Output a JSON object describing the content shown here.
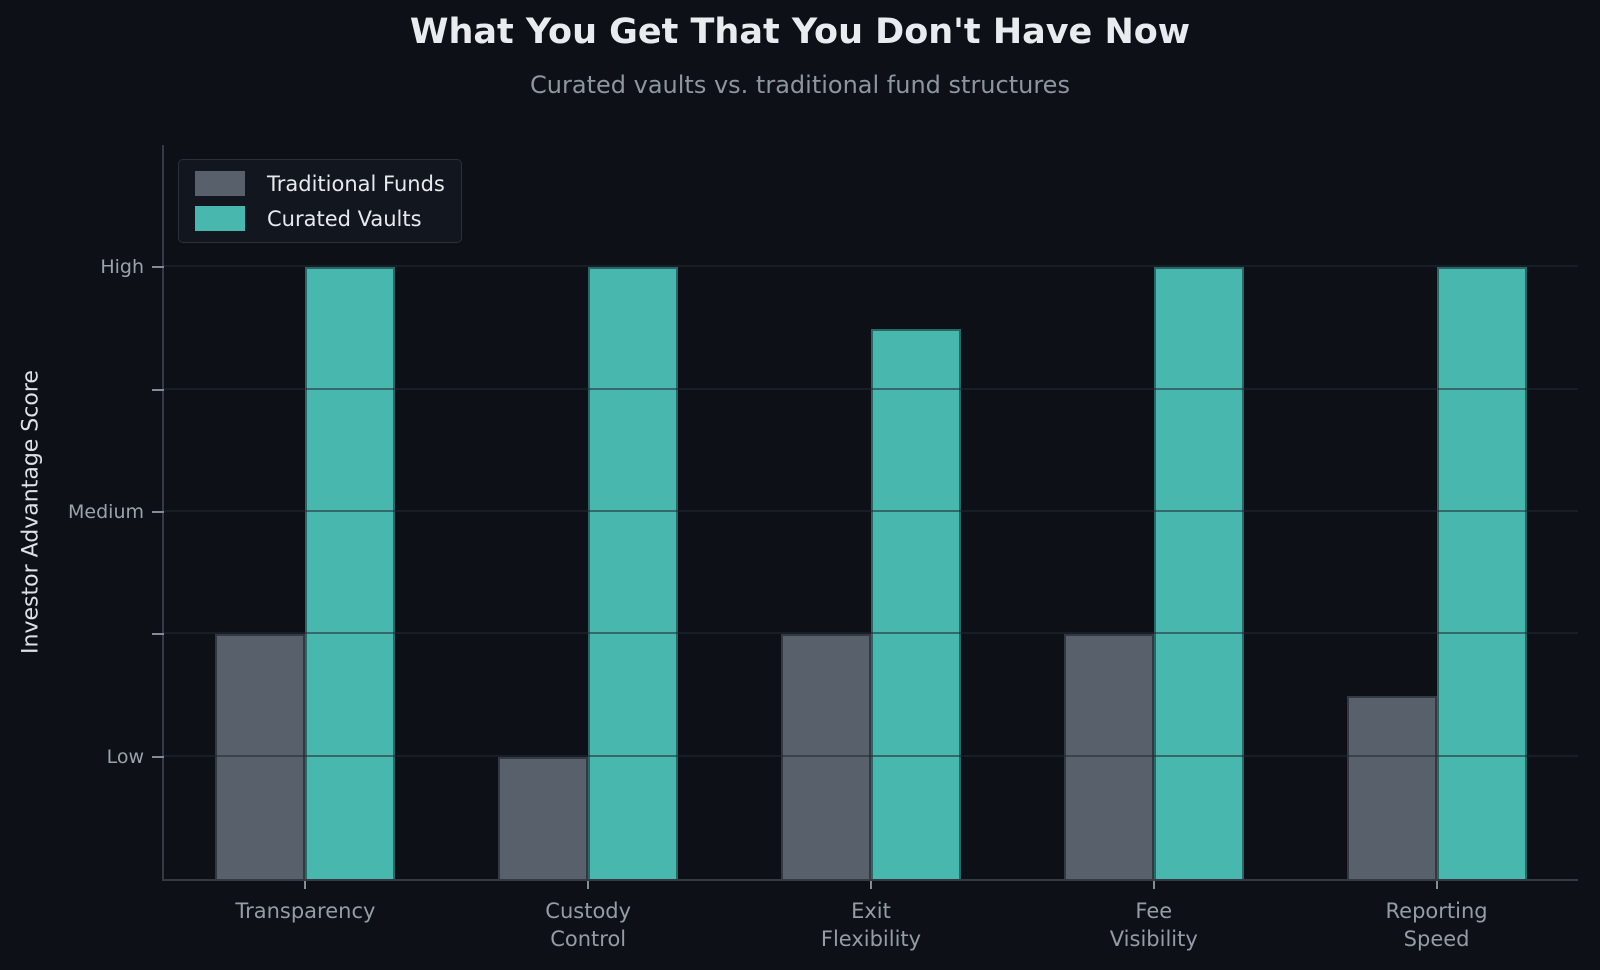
{
  "chart_data": {
    "type": "bar",
    "title": "What You Get That You Don't Have Now",
    "subtitle": "Curated vaults vs. traditional fund structures",
    "xlabel": "",
    "ylabel": "Investor Advantage Score",
    "categories": [
      "Transparency",
      "Custody\nControl",
      "Exit\nFlexibility",
      "Fee\nVisibility",
      "Reporting\nSpeed"
    ],
    "series": [
      {
        "name": "Traditional Funds",
        "color": "#58606c",
        "values": [
          1.5,
          1.0,
          1.5,
          1.5,
          1.25
        ]
      },
      {
        "name": "Curated Vaults",
        "color": "#48b7ae",
        "values": [
          3.0,
          3.0,
          2.75,
          3.0,
          3.0
        ]
      }
    ],
    "ylim": [
      0.5,
      3.5
    ],
    "yticks": [
      {
        "value": 1.0,
        "label": "Low"
      },
      {
        "value": 1.5,
        "label": ""
      },
      {
        "value": 2.0,
        "label": "Medium"
      },
      {
        "value": 2.5,
        "label": ""
      },
      {
        "value": 3.0,
        "label": "High"
      }
    ],
    "grid": true,
    "legend_position": "upper-left"
  },
  "colors": {
    "background": "#0d1117",
    "title_text": "#e9ecef",
    "subtitle_text": "#8d95a0",
    "axis_label_text": "#dde1e6",
    "tick_label_text": "#9aa2ad",
    "tick_label_text2": "#959ca7",
    "tick_mark": "#848c99",
    "spine": "#333a46",
    "gridline": "#232935",
    "legend_bg": "#12161f",
    "legend_border": "#2a303c",
    "legend_text": "#e7eaed",
    "traditional_funds": "#58606c",
    "curated_vaults": "#48b7ae"
  }
}
